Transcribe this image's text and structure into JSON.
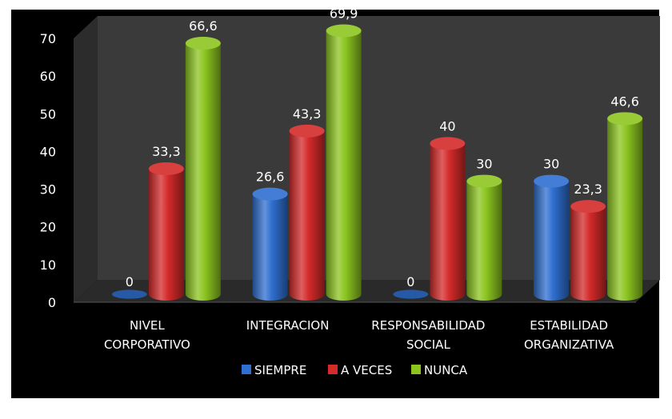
{
  "chart_data": {
    "type": "bar",
    "style": "3d-cylinder",
    "categories": [
      [
        "NIVEL",
        "CORPORATIVO"
      ],
      [
        "INTEGRACION"
      ],
      [
        "RESPONSABILIDAD",
        "SOCIAL"
      ],
      [
        "ESTABILIDAD",
        "ORGANIZATIVA"
      ]
    ],
    "series": [
      {
        "name": "SIEMPRE",
        "color": "#2f6fd0",
        "values": [
          0,
          26.6,
          0,
          30
        ],
        "labels": [
          "0",
          "26,6",
          "0",
          "30"
        ]
      },
      {
        "name": "A VECES",
        "color": "#d42a2a",
        "values": [
          33.3,
          43.3,
          40,
          23.3
        ],
        "labels": [
          "33,3",
          "43,3",
          "40",
          "23,3"
        ]
      },
      {
        "name": "NUNCA",
        "color": "#8cc520",
        "values": [
          66.6,
          69.9,
          30,
          46.6
        ],
        "labels": [
          "66,6",
          "69,9",
          "30",
          "46,6"
        ]
      }
    ],
    "ylim": [
      0,
      70
    ],
    "yticks": [
      0,
      10,
      20,
      30,
      40,
      50,
      60,
      70
    ],
    "grid": false,
    "legend_position": "bottom",
    "background": "#000000",
    "wall_color": "#3a3a3a",
    "floor_color": "#2a2a2a"
  }
}
